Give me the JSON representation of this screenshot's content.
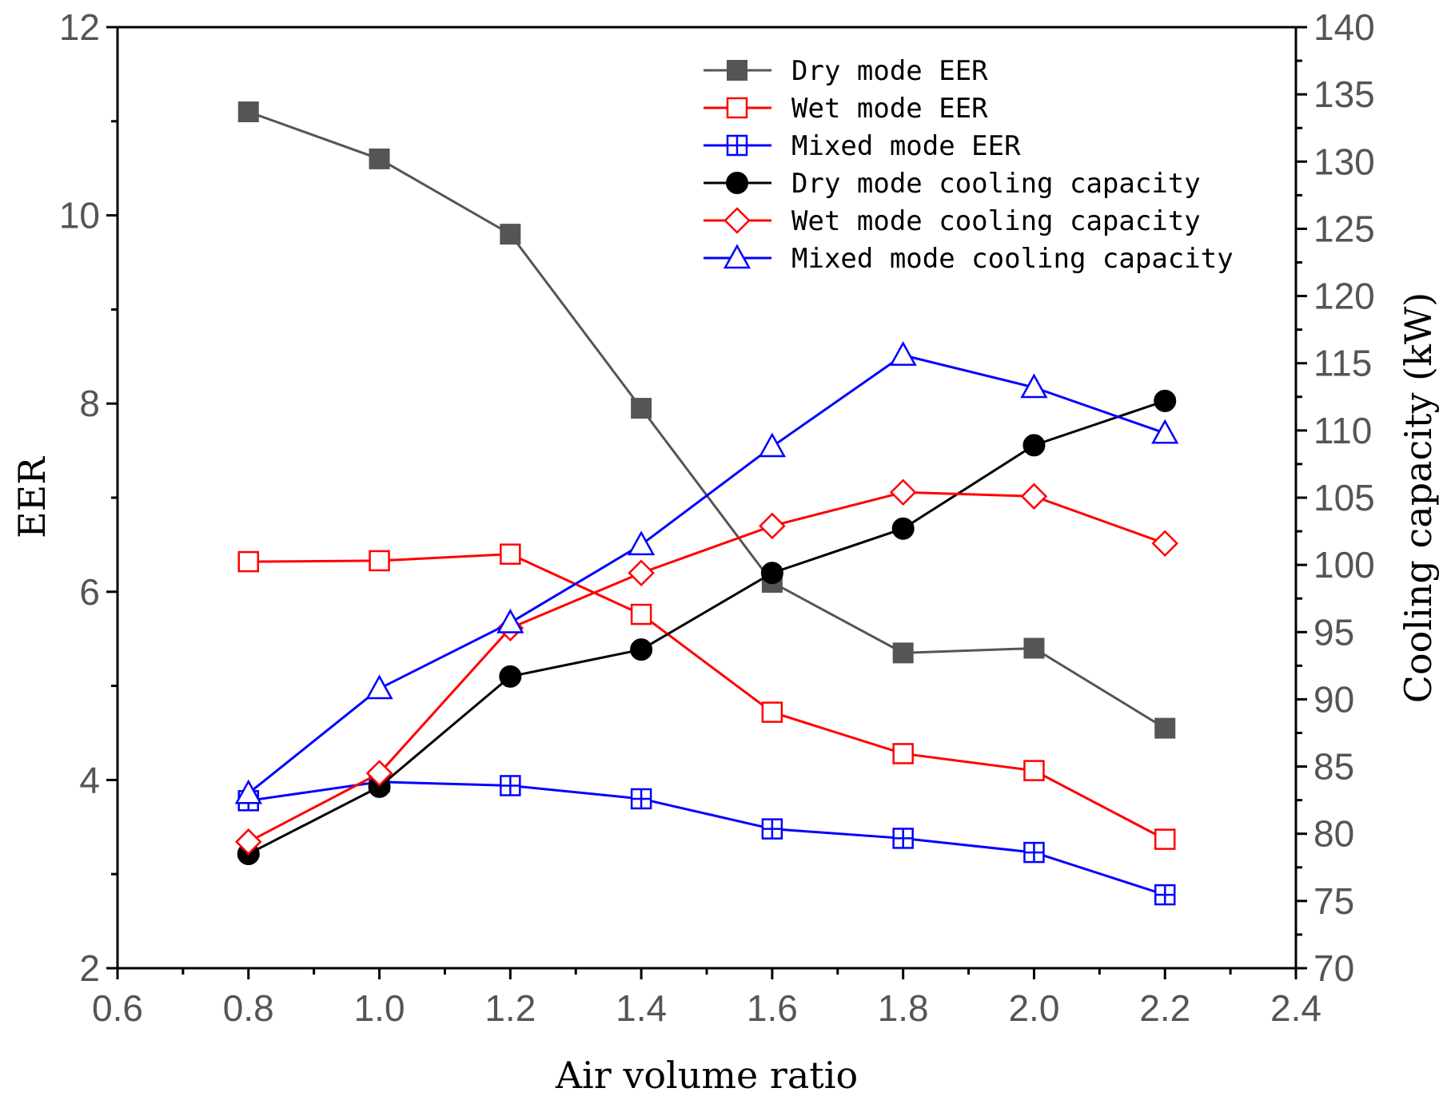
{
  "chart_data": {
    "type": "line",
    "xlabel": "Air volume ratio",
    "ylabel": "EER",
    "y2label": "Cooling capacity (kW)",
    "xlim": [
      0.6,
      2.4
    ],
    "ylim": [
      2,
      12
    ],
    "y2lim": [
      70,
      140
    ],
    "x_ticks": [
      "0.6",
      "0.8",
      "1.0",
      "1.2",
      "1.4",
      "1.6",
      "1.8",
      "2.0",
      "2.2",
      "2.4"
    ],
    "y_ticks": [
      "2",
      "4",
      "6",
      "8",
      "10",
      "12"
    ],
    "y2_ticks": [
      "70",
      "75",
      "80",
      "85",
      "90",
      "95",
      "100",
      "105",
      "110",
      "115",
      "120",
      "125",
      "130",
      "135",
      "140"
    ],
    "legend_position": "top-right",
    "x": [
      0.8,
      1.0,
      1.2,
      1.4,
      1.6,
      1.8,
      2.0,
      2.2
    ],
    "series": [
      {
        "name": "Dry mode EER",
        "axis": "left",
        "color": "#555555",
        "marker": "filled-square",
        "values": [
          11.1,
          10.6,
          9.8,
          7.95,
          6.1,
          5.35,
          5.4,
          4.55
        ]
      },
      {
        "name": "Wet mode EER",
        "axis": "left",
        "color": "#ff0000",
        "marker": "open-square",
        "values": [
          6.32,
          6.33,
          6.4,
          5.76,
          4.72,
          4.28,
          4.1,
          3.37
        ]
      },
      {
        "name": "Mixed mode EER",
        "axis": "left",
        "color": "#0000ff",
        "marker": "crossed-square",
        "values": [
          3.78,
          3.98,
          3.94,
          3.8,
          3.48,
          3.38,
          3.23,
          2.78
        ]
      },
      {
        "name": "Dry mode cooling capacity",
        "axis": "right",
        "color": "#000000",
        "marker": "filled-circle",
        "values": [
          78.5,
          83.5,
          91.7,
          93.7,
          99.4,
          102.7,
          108.9,
          112.2
        ]
      },
      {
        "name": "Wet mode cooling capacity",
        "axis": "right",
        "color": "#ff0000",
        "marker": "open-diamond",
        "values": [
          79.4,
          84.5,
          95.3,
          99.4,
          102.9,
          105.4,
          105.1,
          101.6
        ]
      },
      {
        "name": "Mixed mode cooling capacity",
        "axis": "right",
        "color": "#0000ff",
        "marker": "open-triangle",
        "values": [
          83.0,
          90.8,
          95.7,
          101.5,
          108.8,
          115.6,
          113.2,
          109.8
        ]
      }
    ]
  }
}
